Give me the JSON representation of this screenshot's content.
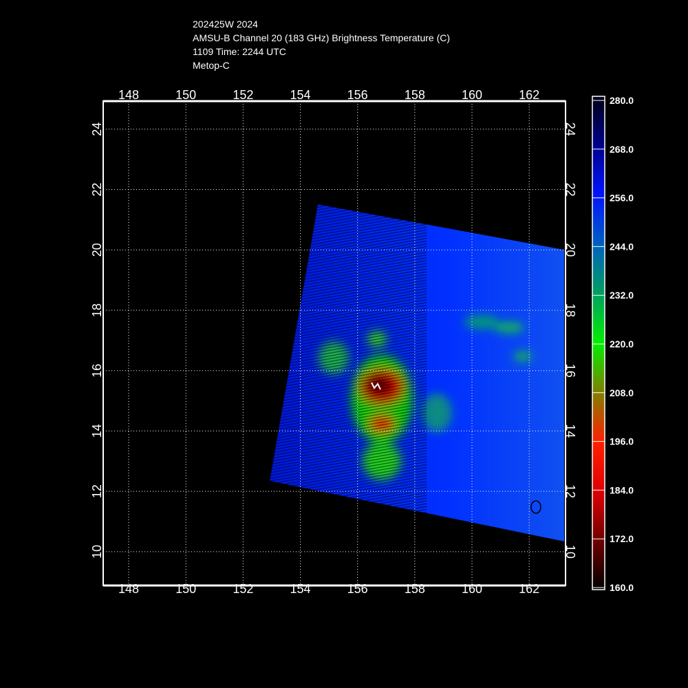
{
  "header": {
    "lines": [
      "202425W 2024",
      "AMSU-B Channel 20 (183 GHz) Brightness Temperature (C)",
      "1109 Time: 2244 UTC",
      "Metop-C"
    ]
  },
  "map": {
    "lon_range": [
      147.11,
      163.27
    ],
    "lat_range": [
      8.88,
      24.93
    ],
    "lon_ticks": [
      148,
      150,
      152,
      154,
      156,
      158,
      160,
      162
    ],
    "lat_ticks": [
      10,
      12,
      14,
      16,
      18,
      20,
      22,
      24
    ]
  },
  "colorbar": {
    "range": [
      160,
      280
    ],
    "ticks": [
      {
        "value": 280,
        "label": "280.0"
      },
      {
        "value": 268,
        "label": "268.0"
      },
      {
        "value": 256,
        "label": "256.0"
      },
      {
        "value": 244,
        "label": "244.0"
      },
      {
        "value": 232,
        "label": "232.0"
      },
      {
        "value": 220,
        "label": "220.0"
      },
      {
        "value": 208,
        "label": "208.0"
      },
      {
        "value": 196,
        "label": "196.0"
      },
      {
        "value": 184,
        "label": "184.0"
      },
      {
        "value": 172,
        "label": "172.0"
      },
      {
        "value": 160,
        "label": "160.0"
      }
    ]
  }
}
